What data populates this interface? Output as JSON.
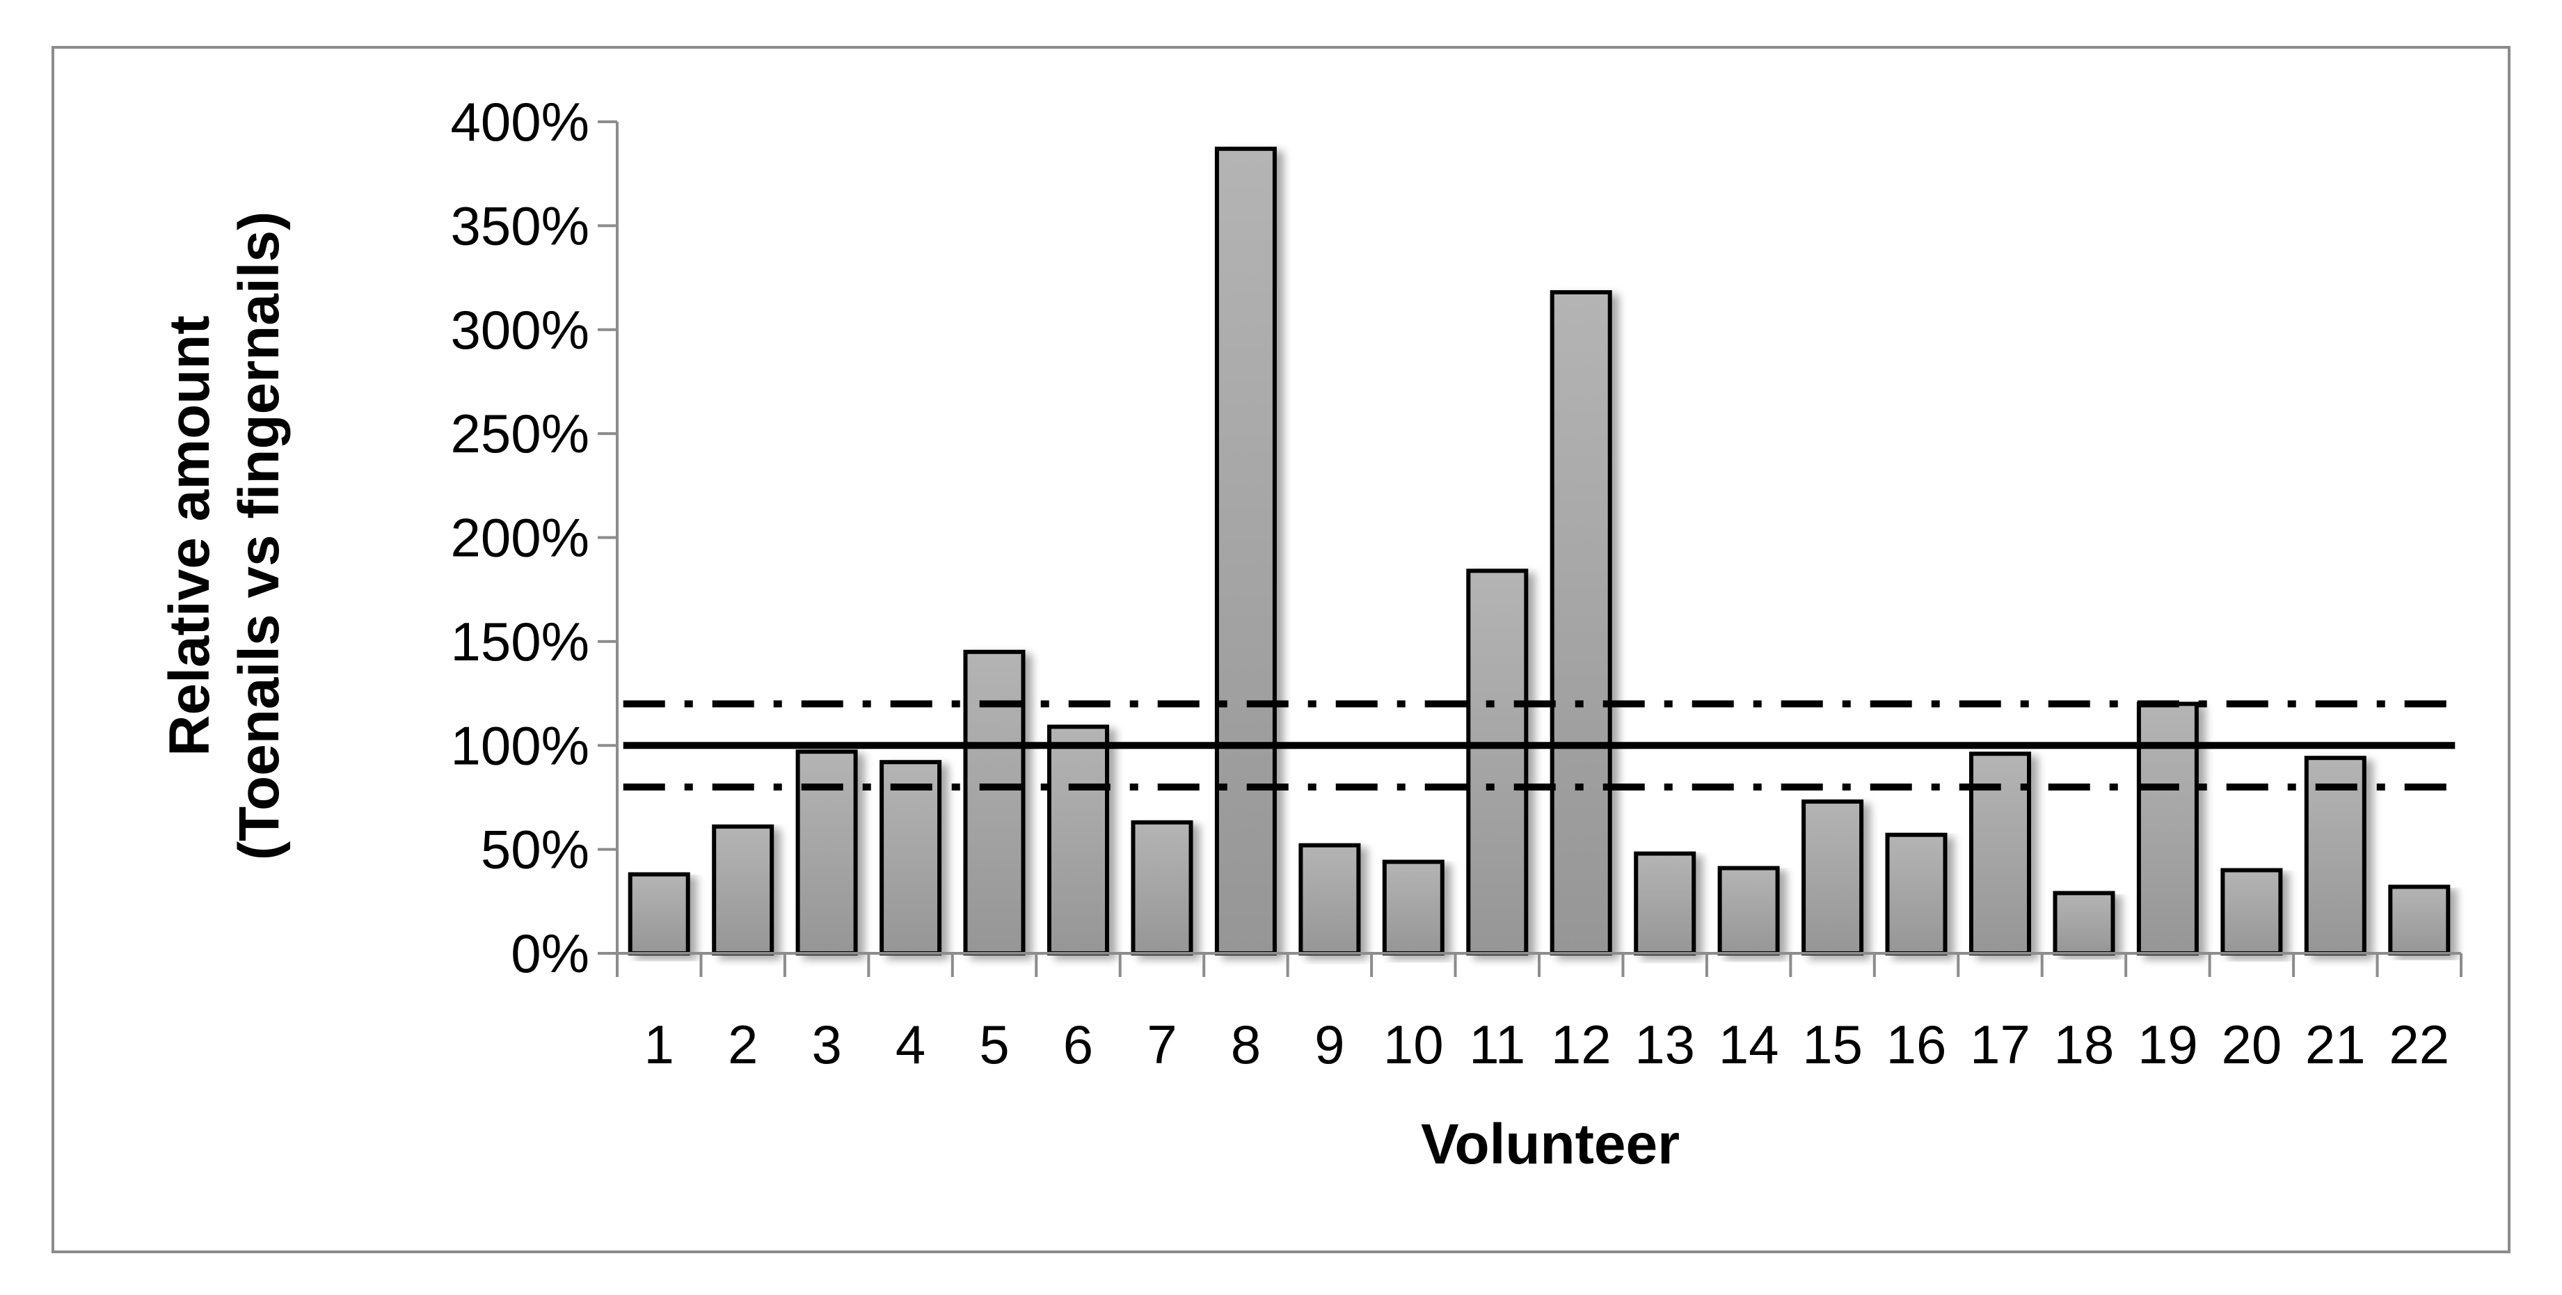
{
  "chart_data": {
    "type": "bar",
    "xlabel": "Volunteer",
    "ylabel_lines": [
      "Relative amount",
      "(Toenails vs fingernails)"
    ],
    "categories": [
      "1",
      "2",
      "3",
      "4",
      "5",
      "6",
      "7",
      "8",
      "9",
      "10",
      "11",
      "12",
      "13",
      "14",
      "15",
      "16",
      "17",
      "18",
      "19",
      "20",
      "21",
      "22"
    ],
    "values": [
      38,
      61,
      97,
      92,
      145,
      109,
      63,
      387,
      52,
      44,
      184,
      318,
      48,
      41,
      73,
      57,
      96,
      29,
      120,
      40,
      94,
      32
    ],
    "y_unit": "%",
    "ylim": [
      0,
      400
    ],
    "y_ticks": [
      "0%",
      "50%",
      "100%",
      "150%",
      "200%",
      "250%",
      "300%",
      "350%",
      "400%"
    ],
    "y_tick_values": [
      0,
      50,
      100,
      150,
      200,
      250,
      300,
      350,
      400
    ],
    "reference_lines": [
      {
        "style": "solid",
        "value": 100
      },
      {
        "style": "dash-dot",
        "value": 120
      },
      {
        "style": "dash-dot",
        "value": 80
      }
    ],
    "grid": false,
    "legend": "none",
    "bar_fill_top": "#b4b4b4",
    "bar_fill_bottom": "#969696",
    "bar_stroke": "#000000"
  }
}
